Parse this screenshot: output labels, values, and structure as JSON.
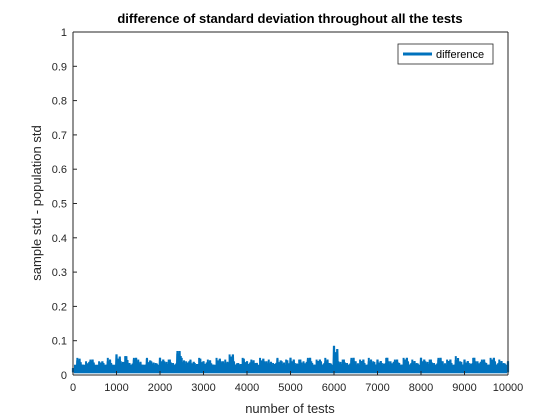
{
  "chart_data": {
    "type": "line",
    "title": "difference of standard deviation throughout all the tests",
    "xlabel": "number of tests",
    "ylabel": "sample std - population std",
    "xlim": [
      0,
      10000
    ],
    "ylim": [
      0,
      1
    ],
    "xticks": [
      "0",
      "1000",
      "2000",
      "3000",
      "4000",
      "5000",
      "6000",
      "7000",
      "8000",
      "9000",
      "10000"
    ],
    "yticks": [
      "0",
      "0.1",
      "0.2",
      "0.3",
      "0.4",
      "0.5",
      "0.6",
      "0.7",
      "0.8",
      "0.9",
      "1"
    ],
    "grid": false,
    "legend_position": "top-right",
    "series": [
      {
        "name": "difference",
        "color": "#0072BD",
        "x": [
          0,
          100,
          200,
          300,
          400,
          500,
          600,
          700,
          800,
          900,
          1000,
          1100,
          1200,
          1300,
          1400,
          1500,
          1600,
          1700,
          1800,
          1900,
          2000,
          2100,
          2200,
          2300,
          2400,
          2500,
          2600,
          2700,
          2800,
          2900,
          3000,
          3100,
          3200,
          3300,
          3400,
          3500,
          3600,
          3700,
          3800,
          3900,
          4000,
          4100,
          4200,
          4300,
          4400,
          4500,
          4600,
          4700,
          4800,
          4900,
          5000,
          5100,
          5200,
          5300,
          5400,
          5500,
          5600,
          5700,
          5800,
          5900,
          6000,
          6100,
          6200,
          6300,
          6400,
          6500,
          6600,
          6700,
          6800,
          6900,
          7000,
          7100,
          7200,
          7300,
          7400,
          7500,
          7600,
          7700,
          7800,
          7900,
          8000,
          8100,
          8200,
          8300,
          8400,
          8500,
          8600,
          8700,
          8800,
          8900,
          9000,
          9100,
          9200,
          9300,
          9400,
          9500,
          9600,
          9700,
          9800,
          9900,
          10000
        ],
        "y": [
          0.02,
          0.05,
          0.03,
          0.04,
          0.045,
          0.025,
          0.04,
          0.035,
          0.05,
          0.03,
          0.06,
          0.04,
          0.055,
          0.035,
          0.05,
          0.045,
          0.03,
          0.05,
          0.04,
          0.035,
          0.05,
          0.04,
          0.045,
          0.035,
          0.07,
          0.05,
          0.04,
          0.045,
          0.035,
          0.05,
          0.04,
          0.045,
          0.03,
          0.05,
          0.04,
          0.045,
          0.06,
          0.04,
          0.035,
          0.05,
          0.04,
          0.045,
          0.035,
          0.05,
          0.04,
          0.045,
          0.035,
          0.05,
          0.04,
          0.045,
          0.05,
          0.035,
          0.045,
          0.04,
          0.05,
          0.035,
          0.045,
          0.04,
          0.05,
          0.035,
          0.085,
          0.04,
          0.045,
          0.035,
          0.05,
          0.04,
          0.045,
          0.035,
          0.05,
          0.04,
          0.045,
          0.035,
          0.05,
          0.04,
          0.045,
          0.035,
          0.05,
          0.04,
          0.045,
          0.035,
          0.05,
          0.04,
          0.045,
          0.035,
          0.05,
          0.04,
          0.045,
          0.035,
          0.055,
          0.04,
          0.045,
          0.035,
          0.05,
          0.04,
          0.045,
          0.035,
          0.05,
          0.04,
          0.045,
          0.035,
          0.04
        ],
        "y_min_envelope": 0.0
      }
    ]
  }
}
